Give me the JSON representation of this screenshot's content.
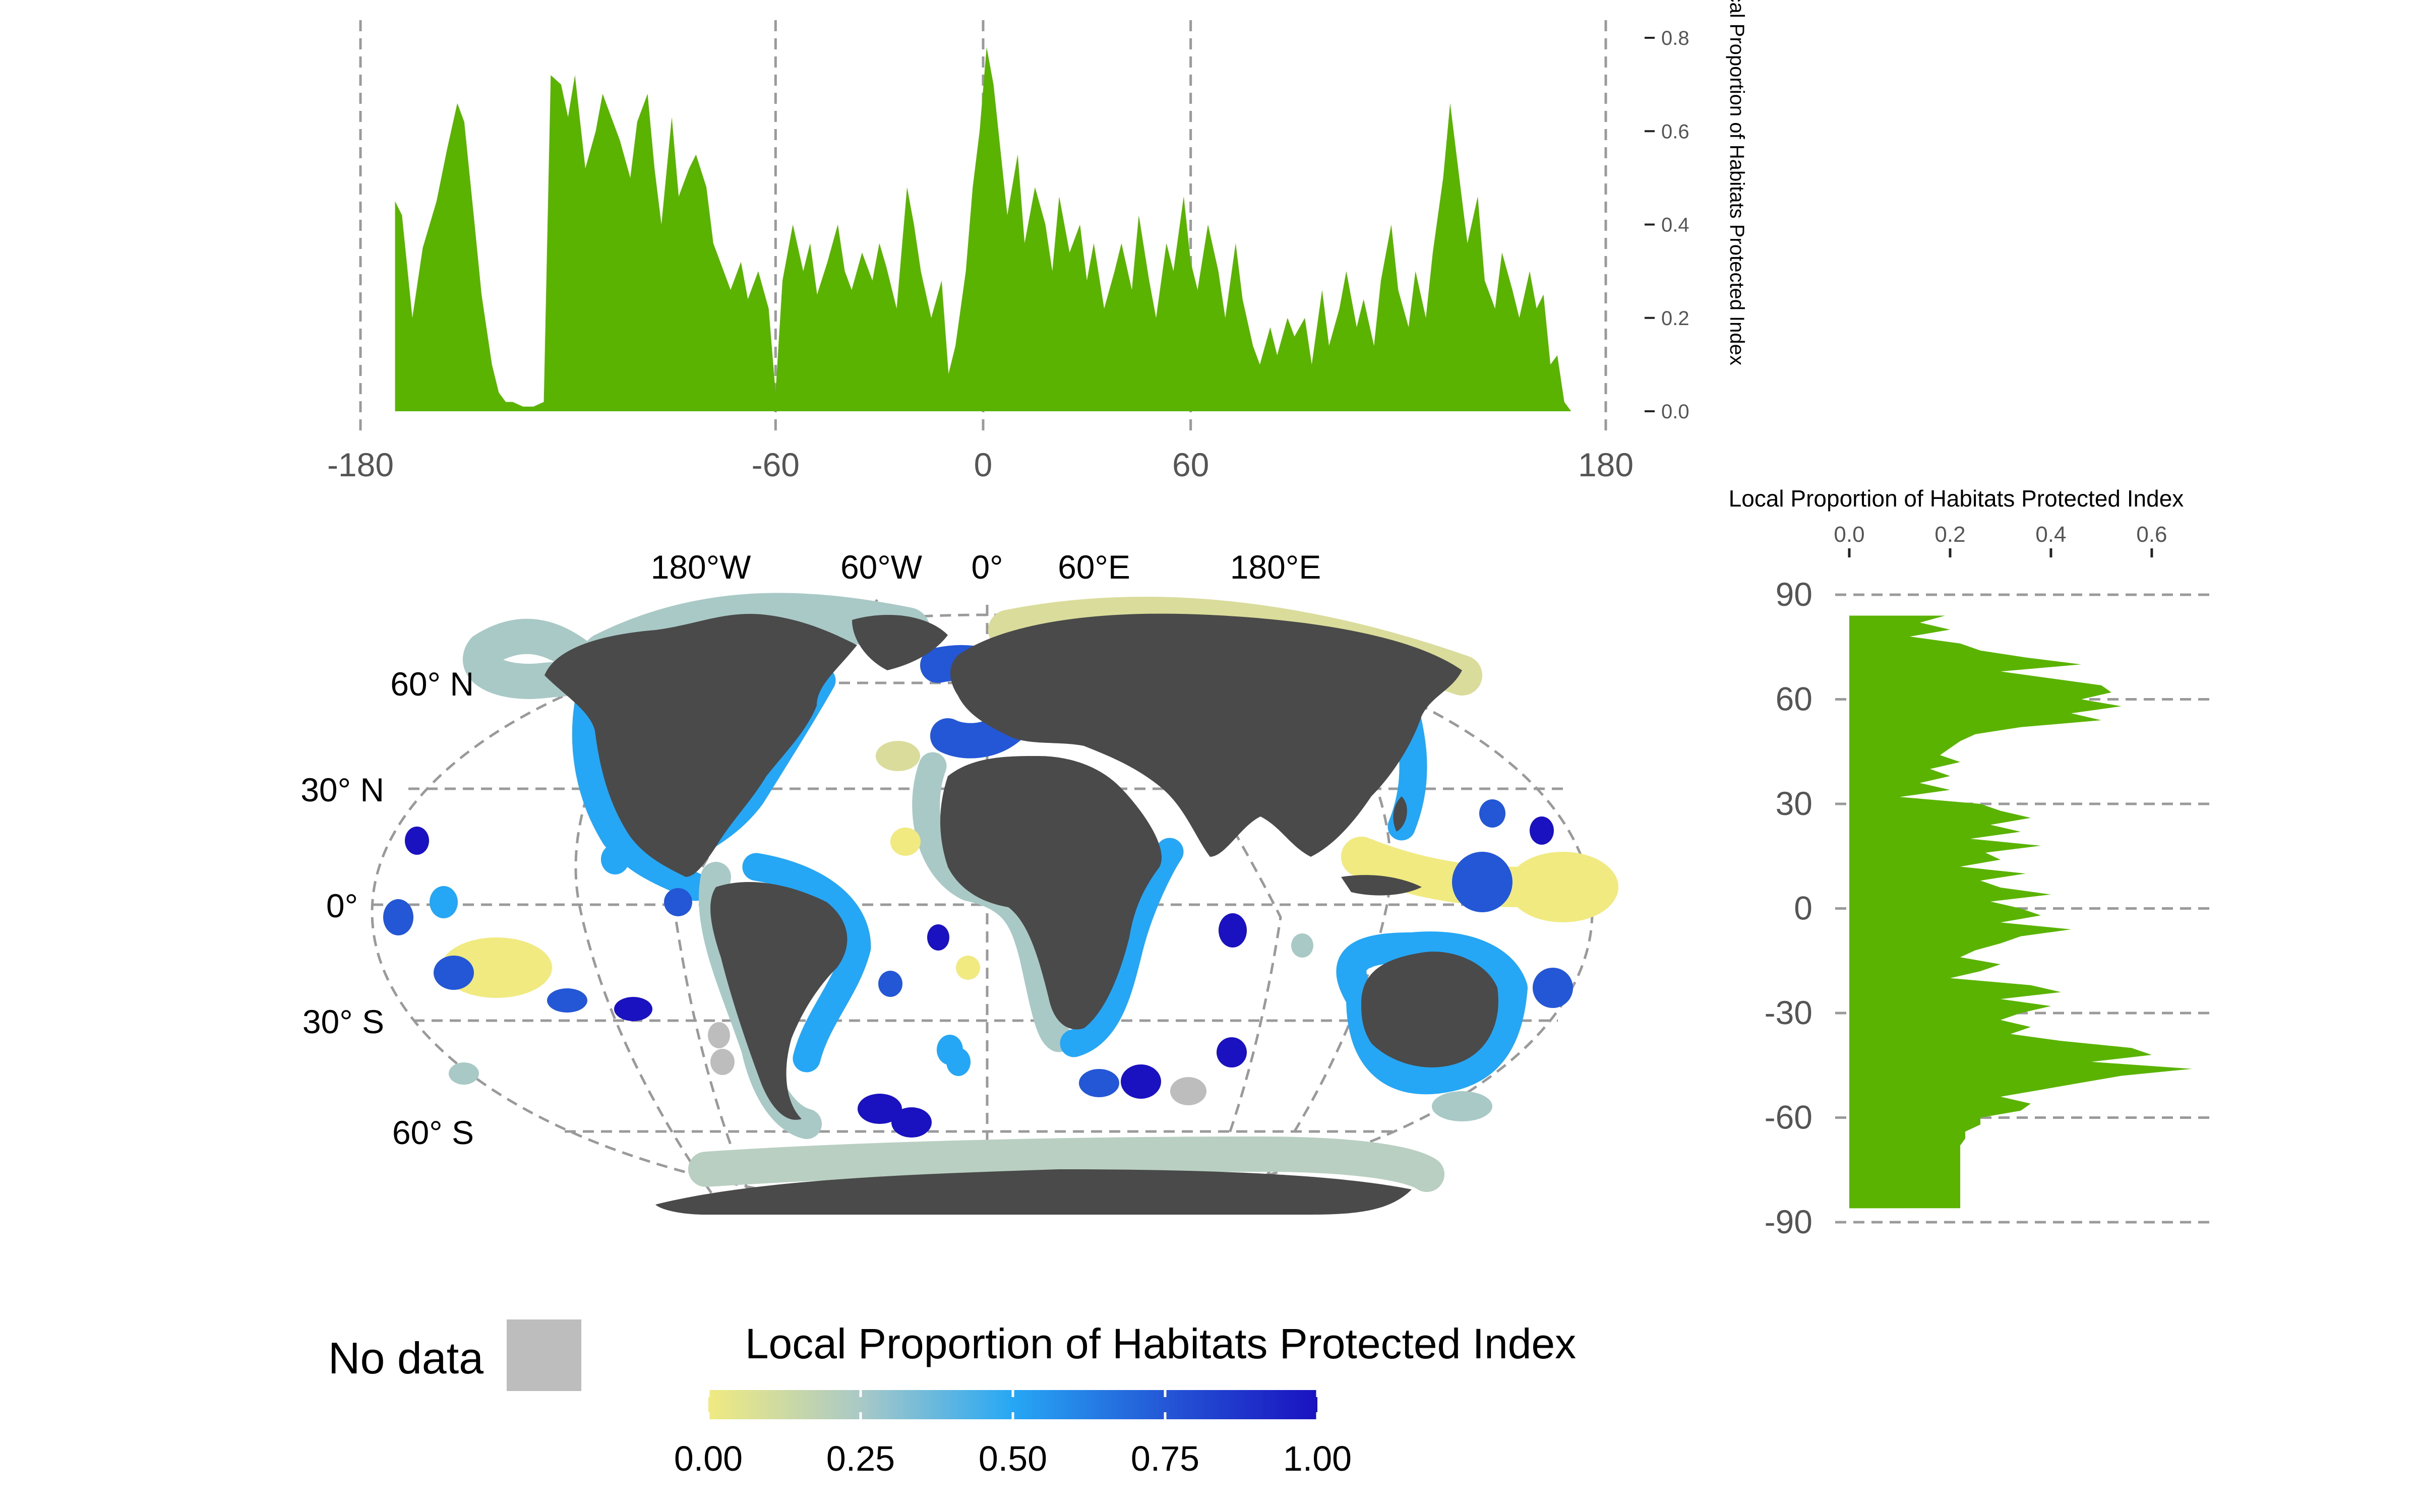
{
  "colors": {
    "area_fill": "#5ab300",
    "land": "#4a4a4a",
    "grid": "#9a9a9a",
    "no_data": "#bdbdbd",
    "scale": [
      "#f0ea80",
      "#a9c9c6",
      "#26a7f5",
      "#2457d6",
      "#1a12c0"
    ]
  },
  "top_panel": {
    "x_ticks": [
      "-180",
      "-60",
      "0",
      "60",
      "180"
    ],
    "y_ticks": [
      "0.0",
      "0.2",
      "0.4",
      "0.6",
      "0.8"
    ],
    "y_axis_label": "Local Proportion of Habitats Protected Index"
  },
  "right_panel": {
    "x_axis_label": "Local Proportion of Habitats Protected Index",
    "x_ticks": [
      "0.0",
      "0.2",
      "0.4",
      "0.6"
    ],
    "y_ticks": [
      "90",
      "60",
      "30",
      "0",
      "-30",
      "-60",
      "-90"
    ]
  },
  "map": {
    "lon_labels": [
      "180°W",
      "60°W",
      "0°",
      "60°E",
      "180°E"
    ],
    "lat_labels": [
      "60° N",
      "30° N",
      "0°",
      "30° S",
      "60° S"
    ]
  },
  "legend": {
    "no_data_label": "No data",
    "title": "Local Proportion of Habitats Protected Index",
    "ticks": [
      "0.00",
      "0.25",
      "0.50",
      "0.75",
      "1.00"
    ]
  },
  "chart_data": [
    {
      "type": "area",
      "orientation": "horizontal",
      "xlabel": "",
      "ylabel": "Local Proportion of Habitats Protected Index",
      "xlim": [
        -180,
        180
      ],
      "ylim": [
        0,
        0.8
      ],
      "x": [
        -170,
        -168,
        -165,
        -162,
        -158,
        -155,
        -152,
        -150,
        -147,
        -145,
        -142,
        -140,
        -138,
        -136,
        -133,
        -130,
        -127,
        -125,
        -122,
        -120,
        -118,
        -115,
        -112,
        -110,
        -108,
        -105,
        -102,
        -100,
        -97,
        -95,
        -93,
        -90,
        -88,
        -85,
        -83,
        -80,
        -78,
        -75,
        -73,
        -70,
        -68,
        -65,
        -62,
        -60,
        -58,
        -55,
        -52,
        -50,
        -48,
        -45,
        -42,
        -40,
        -38,
        -35,
        -32,
        -30,
        -28,
        -25,
        -22,
        -20,
        -18,
        -15,
        -12,
        -10,
        -8,
        -5,
        -3,
        -1,
        1,
        3,
        5,
        7,
        10,
        12,
        15,
        18,
        20,
        22,
        25,
        28,
        30,
        32,
        35,
        38,
        40,
        43,
        45,
        48,
        50,
        53,
        55,
        58,
        60,
        62,
        65,
        68,
        70,
        73,
        75,
        78,
        80,
        83,
        85,
        88,
        90,
        93,
        95,
        98,
        100,
        103,
        105,
        108,
        110,
        113,
        115,
        118,
        120,
        123,
        125,
        128,
        130,
        133,
        135,
        138,
        140,
        143,
        145,
        148,
        150,
        153,
        155,
        158,
        160,
        162,
        164,
        166,
        168,
        170
      ],
      "y": [
        0.45,
        0.42,
        0.2,
        0.35,
        0.45,
        0.56,
        0.66,
        0.62,
        0.4,
        0.25,
        0.1,
        0.04,
        0.02,
        0.02,
        0.01,
        0.01,
        0.02,
        0.72,
        0.7,
        0.63,
        0.72,
        0.52,
        0.6,
        0.68,
        0.64,
        0.58,
        0.5,
        0.62,
        0.68,
        0.52,
        0.4,
        0.63,
        0.46,
        0.52,
        0.55,
        0.48,
        0.36,
        0.3,
        0.26,
        0.32,
        0.24,
        0.3,
        0.22,
        0.04,
        0.28,
        0.4,
        0.3,
        0.36,
        0.25,
        0.32,
        0.4,
        0.3,
        0.26,
        0.34,
        0.28,
        0.36,
        0.31,
        0.22,
        0.48,
        0.4,
        0.3,
        0.2,
        0.28,
        0.08,
        0.14,
        0.3,
        0.48,
        0.6,
        0.78,
        0.7,
        0.56,
        0.42,
        0.55,
        0.36,
        0.48,
        0.4,
        0.3,
        0.46,
        0.34,
        0.4,
        0.28,
        0.36,
        0.22,
        0.3,
        0.36,
        0.26,
        0.42,
        0.28,
        0.2,
        0.36,
        0.3,
        0.46,
        0.32,
        0.26,
        0.4,
        0.3,
        0.2,
        0.36,
        0.24,
        0.14,
        0.1,
        0.18,
        0.12,
        0.2,
        0.16,
        0.2,
        0.1,
        0.26,
        0.14,
        0.22,
        0.3,
        0.18,
        0.24,
        0.14,
        0.28,
        0.4,
        0.26,
        0.18,
        0.3,
        0.2,
        0.34,
        0.5,
        0.66,
        0.48,
        0.36,
        0.46,
        0.28,
        0.22,
        0.34,
        0.26,
        0.2,
        0.3,
        0.22,
        0.25,
        0.1,
        0.12,
        0.02,
        0.0
      ]
    },
    {
      "type": "area",
      "orientation": "vertical",
      "xlabel": "Local Proportion of Habitats Protected Index",
      "ylabel": "",
      "xlim": [
        0,
        0.7
      ],
      "ylim": [
        -90,
        90
      ],
      "lat": [
        84,
        82,
        80,
        78,
        76,
        74,
        72,
        70,
        68,
        66,
        64,
        62,
        60,
        58,
        56,
        54,
        52,
        50,
        48,
        46,
        44,
        42,
        40,
        38,
        36,
        34,
        32,
        30,
        28,
        26,
        24,
        22,
        20,
        18,
        16,
        14,
        12,
        10,
        8,
        6,
        4,
        2,
        0,
        -2,
        -4,
        -6,
        -8,
        -10,
        -12,
        -14,
        -16,
        -18,
        -20,
        -22,
        -24,
        -26,
        -28,
        -30,
        -32,
        -34,
        -36,
        -38,
        -40,
        -42,
        -44,
        -46,
        -48,
        -50,
        -52,
        -54,
        -56,
        -58,
        -60,
        -62,
        -64,
        -66,
        -68,
        -70,
        -72,
        -74,
        -76,
        -78,
        -80,
        -82,
        -84,
        -86
      ],
      "value": [
        0.19,
        0.14,
        0.2,
        0.12,
        0.22,
        0.26,
        0.35,
        0.46,
        0.3,
        0.4,
        0.5,
        0.52,
        0.46,
        0.54,
        0.44,
        0.5,
        0.34,
        0.25,
        0.22,
        0.2,
        0.18,
        0.22,
        0.16,
        0.2,
        0.14,
        0.2,
        0.1,
        0.26,
        0.3,
        0.36,
        0.28,
        0.34,
        0.24,
        0.38,
        0.27,
        0.3,
        0.22,
        0.35,
        0.26,
        0.3,
        0.4,
        0.28,
        0.34,
        0.38,
        0.3,
        0.44,
        0.34,
        0.3,
        0.25,
        0.22,
        0.3,
        0.26,
        0.2,
        0.36,
        0.42,
        0.3,
        0.4,
        0.34,
        0.3,
        0.36,
        0.32,
        0.42,
        0.56,
        0.6,
        0.48,
        0.68,
        0.54,
        0.46,
        0.38,
        0.3,
        0.36,
        0.34,
        0.26,
        0.26,
        0.23,
        0.23,
        0.22,
        0.22,
        0.22,
        0.22,
        0.22,
        0.22,
        0.22,
        0.22,
        0.22,
        0.22
      ]
    }
  ]
}
